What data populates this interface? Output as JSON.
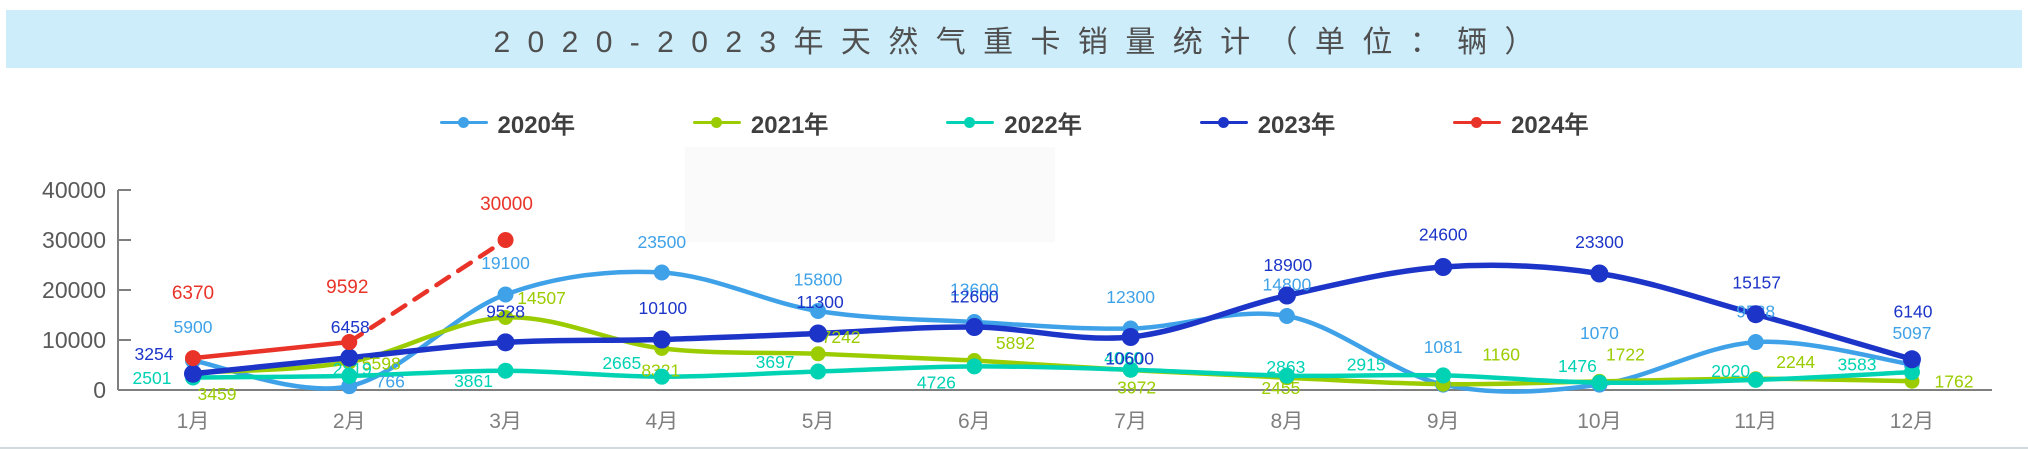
{
  "title": "2020-2023年天然气重卡销量统计（单位：辆）",
  "colors": {
    "title_bar_bg": "#CDEDFB",
    "title_text": "#4f4f4f",
    "axis": "#7f7f7f",
    "y_tick_label": "#595959",
    "x_tick_label": "#7f7f7f",
    "watermark_patch": "#FAFAFA"
  },
  "chart_data": {
    "type": "line",
    "title": "2020-2023年天然气重卡销量统计（单位：辆）",
    "categories": [
      "1月",
      "2月",
      "3月",
      "4月",
      "5月",
      "6月",
      "7月",
      "8月",
      "9月",
      "10月",
      "11月",
      "12月"
    ],
    "y_ticks": [
      0,
      10000,
      20000,
      30000,
      40000
    ],
    "y_tick_labels": [
      "0",
      "10000",
      "20000",
      "30000",
      "40000"
    ],
    "ylim": [
      0,
      40000
    ],
    "grid": false,
    "legend_position": "top",
    "smooth": true,
    "series": [
      {
        "name": "2020年",
        "color": "#3FA2E8",
        "line_width": 4.5,
        "marker_radius": 8,
        "values": [
          5900,
          766,
          19100,
          23500,
          15800,
          13600,
          12300,
          14800,
          1081,
          1070,
          9588,
          5097
        ],
        "label_offsets": [
          [
            0,
            -34
          ],
          [
            41,
            -5
          ],
          [
            0,
            -32
          ],
          [
            0,
            -31
          ],
          [
            0,
            -32
          ],
          [
            0,
            -33
          ],
          [
            0,
            -32
          ],
          [
            0,
            -32
          ],
          [
            0,
            -38
          ],
          [
            0,
            -52
          ],
          [
            0,
            -31
          ],
          [
            0,
            -32
          ]
        ]
      },
      {
        "name": "2021年",
        "color": "#9ACC00",
        "line_width": 4.5,
        "marker_radius": 7.5,
        "values": [
          3459,
          5598,
          14507,
          8321,
          7242,
          5892,
          3972,
          2455,
          1160,
          1722,
          2244,
          1762
        ],
        "label_offsets": [
          [
            24,
            21
          ],
          [
            32,
            1
          ],
          [
            36,
            -20
          ],
          [
            -1,
            22
          ],
          [
            23,
            -17
          ],
          [
            41,
            -18
          ],
          [
            6,
            17
          ],
          [
            -6,
            10
          ],
          [
            58,
            -30
          ],
          [
            26,
            -27
          ],
          [
            40,
            -17
          ],
          [
            42,
            0
          ]
        ]
      },
      {
        "name": "2022年",
        "color": "#00D2B4",
        "line_width": 4.5,
        "marker_radius": 8,
        "values": [
          2501,
          2819,
          3861,
          2665,
          3697,
          4726,
          4060,
          2863,
          2915,
          1476,
          2020,
          3583
        ],
        "label_offsets": [
          [
            -41,
            0
          ],
          [
            3,
            -7
          ],
          [
            -32,
            10
          ],
          [
            -40,
            -14
          ],
          [
            -43,
            -10
          ],
          [
            -38,
            16
          ],
          [
            -7,
            -12
          ],
          [
            -1,
            -9
          ],
          [
            -77,
            -11
          ],
          [
            -22,
            -17
          ],
          [
            -25,
            -9
          ],
          [
            -55,
            -8
          ]
        ]
      },
      {
        "name": "2023年",
        "color": "#1C35C8",
        "line_width": 5.5,
        "marker_radius": 9,
        "values": [
          3254,
          6458,
          9528,
          10100,
          11300,
          12600,
          10600,
          18900,
          24600,
          23300,
          15157,
          6140
        ],
        "label_offsets": [
          [
            -39,
            -20
          ],
          [
            1,
            -31
          ],
          [
            0,
            -31
          ],
          [
            1,
            -32
          ],
          [
            2,
            -32
          ],
          [
            0,
            -31
          ],
          [
            -1,
            21
          ],
          [
            1,
            -31
          ],
          [
            0,
            -33
          ],
          [
            0,
            -32
          ],
          [
            1,
            -32
          ],
          [
            1,
            -48
          ]
        ]
      },
      {
        "name": "2024年",
        "color": "#E93328",
        "line_width": 4.5,
        "marker_radius": 8,
        "dashed_from": 1,
        "label_font_size": 19,
        "values": [
          6370,
          9592,
          30000
        ],
        "label_offsets": [
          [
            0,
            -66
          ],
          [
            -2,
            -56
          ],
          [
            1,
            -37
          ]
        ]
      }
    ]
  }
}
